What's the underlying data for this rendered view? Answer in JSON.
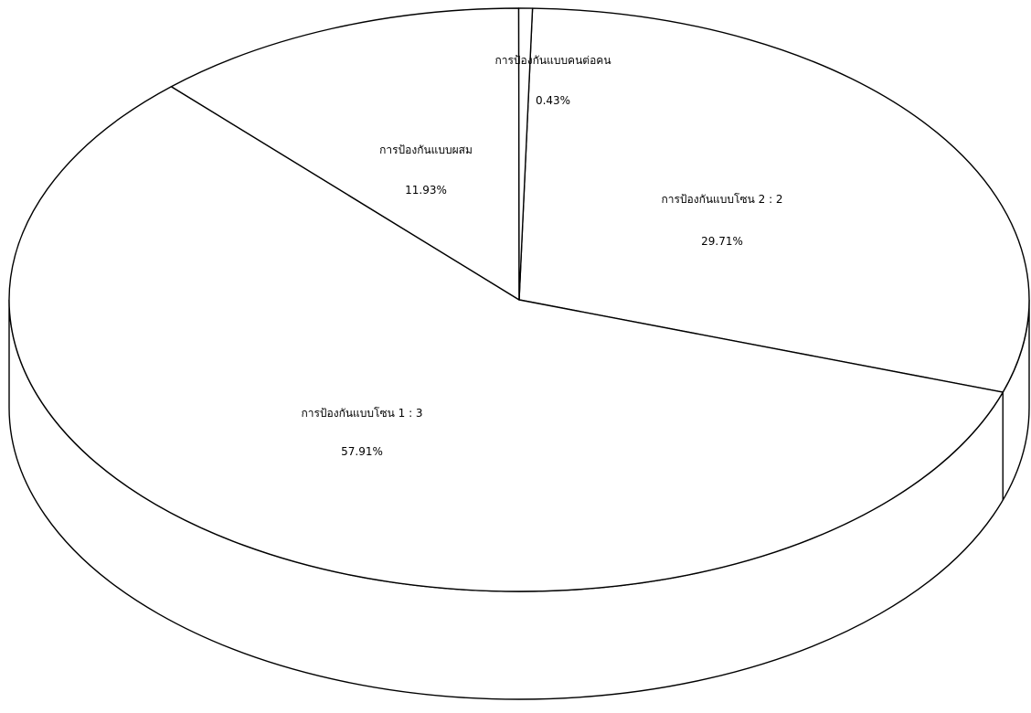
{
  "chart_data": {
    "type": "pie",
    "style": "3d",
    "categories": [
      "การป้องกันแบบโซน 1 : 3",
      "การป้องกันแบบโซน 2 : 2",
      "การป้องกันแบบคนต่อคน",
      "การป้องกันแบบผสม"
    ],
    "values": [
      57.91,
      29.71,
      0.43,
      11.93
    ],
    "value_labels": [
      "57.91%",
      "29.71%",
      "0.43%",
      "11.93%"
    ],
    "colors": {
      "fill": "#ffffff",
      "stroke": "#000000"
    },
    "legend": "none"
  }
}
